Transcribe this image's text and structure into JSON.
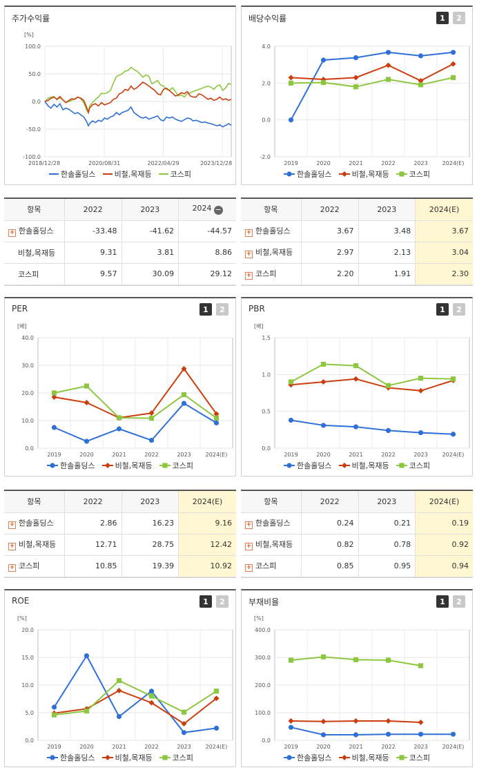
{
  "colors": {
    "series1": "#2f6fd8",
    "series2": "#cc3d0e",
    "series3": "#8dc63f"
  },
  "legend_names": [
    "한솔홀딩스",
    "비철,목재등",
    "코스피"
  ],
  "buttons": {
    "one": "1",
    "two": "2"
  },
  "chart_data": [
    {
      "id": "stock",
      "type": "line",
      "title": "주가수익률",
      "unit": "[%]",
      "xlim": [
        "2018-12-28",
        "2024-03-28"
      ],
      "ylim": [
        -100,
        100
      ],
      "yticks": [
        "100.0",
        "50.0",
        "0.0",
        "-50.0",
        "-100.0"
      ],
      "x_tick_labels": [
        "2018/12/28",
        "2020/08/31",
        "2022/04/29",
        "2023/12/28"
      ],
      "x_tick_dates": [
        "2018-12-28",
        "2020-08-31",
        "2022-04-29",
        "2023-12-28"
      ],
      "series": [
        {
          "name": "한솔홀딩스",
          "dates": [
            "2018-12-28",
            "2019-02-01",
            "2019-03-01",
            "2019-04-01",
            "2019-05-01",
            "2019-06-01",
            "2019-07-01",
            "2019-08-01",
            "2019-09-01",
            "2019-10-01",
            "2019-11-01",
            "2019-12-01",
            "2020-01-01",
            "2020-02-01",
            "2020-03-01",
            "2020-03-19",
            "2020-04-01",
            "2020-05-01",
            "2020-06-01",
            "2020-07-01",
            "2020-08-01",
            "2020-09-01",
            "2020-10-01",
            "2020-11-01",
            "2020-12-01",
            "2021-01-01",
            "2021-02-01",
            "2021-03-01",
            "2021-04-01",
            "2021-05-01",
            "2021-06-01",
            "2021-07-01",
            "2021-08-01",
            "2021-09-01",
            "2021-10-01",
            "2021-11-01",
            "2021-12-01",
            "2022-01-01",
            "2022-02-01",
            "2022-03-01",
            "2022-04-01",
            "2022-05-01",
            "2022-06-01",
            "2022-07-01",
            "2022-08-01",
            "2022-09-01",
            "2022-10-01",
            "2022-11-01",
            "2022-12-01",
            "2023-01-01",
            "2023-02-01",
            "2023-03-01",
            "2023-04-01",
            "2023-05-01",
            "2023-06-01",
            "2023-07-01",
            "2023-08-01",
            "2023-09-01",
            "2023-10-01",
            "2023-11-01",
            "2023-12-01",
            "2024-01-01",
            "2024-02-01",
            "2024-03-01",
            "2024-03-28"
          ],
          "values": [
            0,
            -8,
            -12,
            -5,
            -10,
            -4,
            -15,
            -12,
            -14,
            -18,
            -22,
            -20,
            -24,
            -28,
            -36,
            -44,
            -40,
            -35,
            -38,
            -34,
            -36,
            -30,
            -32,
            -28,
            -26,
            -20,
            -24,
            -20,
            -18,
            -16,
            -10,
            -20,
            -24,
            -28,
            -30,
            -28,
            -32,
            -30,
            -28,
            -26,
            -33,
            -35,
            -28,
            -30,
            -28,
            -32,
            -34,
            -36,
            -33,
            -30,
            -31,
            -35,
            -34,
            -36,
            -38,
            -37,
            -39,
            -40,
            -42,
            -44,
            -42,
            -46,
            -43,
            -40,
            -43
          ]
        },
        {
          "name": "비철,목재등",
          "dates": [
            "2018-12-28",
            "2019-02-01",
            "2019-03-01",
            "2019-04-01",
            "2019-05-01",
            "2019-06-01",
            "2019-07-01",
            "2019-08-01",
            "2019-09-01",
            "2019-10-01",
            "2019-11-01",
            "2019-12-01",
            "2020-01-01",
            "2020-02-01",
            "2020-03-01",
            "2020-03-19",
            "2020-04-01",
            "2020-05-01",
            "2020-06-01",
            "2020-07-01",
            "2020-08-01",
            "2020-09-01",
            "2020-10-01",
            "2020-11-01",
            "2020-12-01",
            "2021-01-01",
            "2021-02-01",
            "2021-03-01",
            "2021-04-01",
            "2021-05-01",
            "2021-06-01",
            "2021-07-01",
            "2021-08-01",
            "2021-09-01",
            "2021-10-01",
            "2021-11-01",
            "2021-12-01",
            "2022-01-01",
            "2022-02-01",
            "2022-03-01",
            "2022-04-01",
            "2022-05-01",
            "2022-06-01",
            "2022-07-01",
            "2022-08-01",
            "2022-09-01",
            "2022-10-01",
            "2022-11-01",
            "2022-12-01",
            "2023-01-01",
            "2023-02-01",
            "2023-03-01",
            "2023-04-01",
            "2023-05-01",
            "2023-06-01",
            "2023-07-01",
            "2023-08-01",
            "2023-09-01",
            "2023-10-01",
            "2023-11-01",
            "2023-12-01",
            "2024-01-01",
            "2024-02-01",
            "2024-03-01",
            "2024-03-28"
          ],
          "values": [
            0,
            2,
            6,
            8,
            4,
            9,
            3,
            -2,
            2,
            5,
            4,
            8,
            6,
            2,
            -10,
            -20,
            -12,
            -6,
            -4,
            -8,
            -2,
            -6,
            -4,
            -2,
            4,
            6,
            14,
            16,
            22,
            20,
            28,
            22,
            25,
            30,
            35,
            32,
            28,
            24,
            20,
            14,
            12,
            22,
            24,
            20,
            15,
            10,
            12,
            16,
            14,
            18,
            10,
            8,
            8,
            14,
            12,
            8,
            4,
            6,
            2,
            4,
            8,
            3,
            5,
            2,
            4
          ]
        },
        {
          "name": "코스피",
          "dates": [
            "2018-12-28",
            "2019-02-01",
            "2019-03-01",
            "2019-04-01",
            "2019-05-01",
            "2019-06-01",
            "2019-07-01",
            "2019-08-01",
            "2019-09-01",
            "2019-10-01",
            "2019-11-01",
            "2019-12-01",
            "2020-01-01",
            "2020-02-01",
            "2020-03-01",
            "2020-03-19",
            "2020-04-01",
            "2020-05-01",
            "2020-06-01",
            "2020-07-01",
            "2020-08-01",
            "2020-09-01",
            "2020-10-01",
            "2020-11-01",
            "2020-12-01",
            "2021-01-01",
            "2021-02-01",
            "2021-03-01",
            "2021-04-01",
            "2021-05-01",
            "2021-06-01",
            "2021-07-01",
            "2021-08-01",
            "2021-09-01",
            "2021-10-01",
            "2021-11-01",
            "2021-12-01",
            "2022-01-01",
            "2022-02-01",
            "2022-03-01",
            "2022-04-01",
            "2022-05-01",
            "2022-06-01",
            "2022-07-01",
            "2022-08-01",
            "2022-09-01",
            "2022-10-01",
            "2022-11-01",
            "2022-12-01",
            "2023-01-01",
            "2023-02-01",
            "2023-03-01",
            "2023-04-01",
            "2023-05-01",
            "2023-06-01",
            "2023-07-01",
            "2023-08-01",
            "2023-09-01",
            "2023-10-01",
            "2023-11-01",
            "2023-12-01",
            "2024-01-01",
            "2024-02-01",
            "2024-03-01",
            "2024-03-28"
          ],
          "values": [
            0,
            6,
            8,
            9,
            3,
            7,
            3,
            -2,
            0,
            2,
            5,
            8,
            5,
            -2,
            -15,
            -20,
            -8,
            -2,
            4,
            8,
            15,
            14,
            16,
            20,
            33,
            45,
            48,
            50,
            55,
            56,
            62,
            58,
            55,
            50,
            44,
            48,
            46,
            32,
            35,
            38,
            30,
            28,
            22,
            20,
            25,
            18,
            10,
            12,
            8,
            14,
            16,
            18,
            20,
            22,
            24,
            26,
            28,
            26,
            22,
            28,
            30,
            20,
            25,
            33,
            31
          ]
        }
      ]
    },
    {
      "id": "dividend",
      "type": "line",
      "title": "배당수익률",
      "ylim": [
        -2,
        4
      ],
      "yticks": [
        "4.0",
        "2.0",
        "0.0",
        "-2.0"
      ],
      "categories": [
        "2019",
        "2020",
        "2021",
        "2022",
        "2023",
        "2024(E)"
      ],
      "series": [
        {
          "name": "한솔홀딩스",
          "values": [
            0.0,
            3.25,
            3.38,
            3.67,
            3.48,
            3.67
          ]
        },
        {
          "name": "비철,목재등",
          "values": [
            2.3,
            2.2,
            2.3,
            2.97,
            2.13,
            3.04
          ]
        },
        {
          "name": "코스피",
          "values": [
            2.0,
            2.03,
            1.8,
            2.2,
            1.91,
            2.3
          ]
        }
      ]
    },
    {
      "id": "per",
      "type": "line",
      "title": "PER",
      "unit": "[배]",
      "ylim": [
        0,
        40
      ],
      "yticks": [
        "40.0",
        "30.0",
        "20.0",
        "10.0",
        "0.0"
      ],
      "categories": [
        "2019",
        "2020",
        "2021",
        "2022",
        "2023",
        "2024(E)"
      ],
      "series": [
        {
          "name": "한솔홀딩스",
          "values": [
            7.5,
            2.5,
            7.0,
            2.86,
            16.23,
            9.16
          ]
        },
        {
          "name": "비철,목재등",
          "values": [
            18.5,
            16.5,
            11.0,
            12.71,
            28.75,
            12.42
          ]
        },
        {
          "name": "코스피",
          "values": [
            20.0,
            22.5,
            11.0,
            10.85,
            19.39,
            10.92
          ]
        }
      ]
    },
    {
      "id": "pbr",
      "type": "line",
      "title": "PBR",
      "unit": "[배]",
      "ylim": [
        0,
        1.5
      ],
      "yticks": [
        "1.5",
        "1.0",
        "0.5",
        "0.0"
      ],
      "categories": [
        "2019",
        "2020",
        "2021",
        "2022",
        "2023",
        "2024(E)"
      ],
      "series": [
        {
          "name": "한솔홀딩스",
          "values": [
            0.38,
            0.31,
            0.29,
            0.24,
            0.21,
            0.19
          ]
        },
        {
          "name": "비철,목재등",
          "values": [
            0.86,
            0.9,
            0.94,
            0.82,
            0.78,
            0.92
          ]
        },
        {
          "name": "코스피",
          "values": [
            0.9,
            1.14,
            1.12,
            0.85,
            0.95,
            0.94
          ]
        }
      ]
    },
    {
      "id": "roe",
      "type": "line",
      "title": "ROE",
      "unit": "[%]",
      "ylim": [
        0,
        20
      ],
      "yticks": [
        "20.0",
        "15.0",
        "10.0",
        "5.0",
        "0.0"
      ],
      "categories": [
        "2019",
        "2020",
        "2021",
        "2022",
        "2023",
        "2024(E)"
      ],
      "series": [
        {
          "name": "한솔홀딩스",
          "values": [
            6.0,
            15.3,
            4.3,
            8.9,
            1.4,
            2.2
          ]
        },
        {
          "name": "비철,목재등",
          "values": [
            4.9,
            5.7,
            9.0,
            6.8,
            3.0,
            7.6
          ]
        },
        {
          "name": "코스피",
          "values": [
            4.6,
            5.3,
            10.8,
            8.0,
            5.1,
            8.9
          ]
        }
      ]
    },
    {
      "id": "debt",
      "type": "line",
      "title": "부채비율",
      "unit": "[%]",
      "ylim": [
        0,
        400
      ],
      "yticks": [
        "400.0",
        "300.0",
        "200.0",
        "100.0",
        "0.0"
      ],
      "categories": [
        "2019",
        "2020",
        "2021",
        "2022",
        "2023",
        "2024(E)"
      ],
      "series": [
        {
          "name": "한솔홀딩스",
          "values": [
            47,
            20,
            20,
            22,
            22,
            22
          ]
        },
        {
          "name": "비철,목재등",
          "values": [
            70,
            68,
            70,
            70,
            65,
            null
          ]
        },
        {
          "name": "코스피",
          "values": [
            290,
            302,
            292,
            290,
            270,
            null
          ]
        }
      ]
    }
  ],
  "tables": {
    "stock": {
      "header": [
        "항목",
        "2022",
        "2023",
        "2024"
      ],
      "rows": [
        {
          "name": "한솔홀딩스",
          "values": [
            "-33.48",
            "-41.62",
            "-44.57"
          ]
        },
        {
          "name": "비철,목재등",
          "values": [
            "9.31",
            "3.81",
            "8.86"
          ]
        },
        {
          "name": "코스피",
          "values": [
            "9.57",
            "30.09",
            "29.12"
          ]
        }
      ]
    },
    "dividend": {
      "header": [
        "항목",
        "2022",
        "2023",
        "2024(E)"
      ],
      "rows": [
        {
          "name": "한솔홀딩스",
          "values": [
            "3.67",
            "3.48",
            "3.67"
          ]
        },
        {
          "name": "비철,목재등",
          "values": [
            "2.97",
            "2.13",
            "3.04"
          ]
        },
        {
          "name": "코스피",
          "values": [
            "2.20",
            "1.91",
            "2.30"
          ]
        }
      ]
    },
    "per": {
      "header": [
        "항목",
        "2022",
        "2023",
        "2024(E)"
      ],
      "rows": [
        {
          "name": "한솔홀딩스",
          "values": [
            "2.86",
            "16.23",
            "9.16"
          ]
        },
        {
          "name": "비철,목재등",
          "values": [
            "12.71",
            "28.75",
            "12.42"
          ]
        },
        {
          "name": "코스피",
          "values": [
            "10.85",
            "19.39",
            "10.92"
          ]
        }
      ]
    },
    "pbr": {
      "header": [
        "항목",
        "2022",
        "2023",
        "2024(E)"
      ],
      "rows": [
        {
          "name": "한솔홀딩스",
          "values": [
            "0.24",
            "0.21",
            "0.19"
          ]
        },
        {
          "name": "비철,목재등",
          "values": [
            "0.82",
            "0.78",
            "0.92"
          ]
        },
        {
          "name": "코스피",
          "values": [
            "0.85",
            "0.95",
            "0.94"
          ]
        }
      ]
    }
  }
}
